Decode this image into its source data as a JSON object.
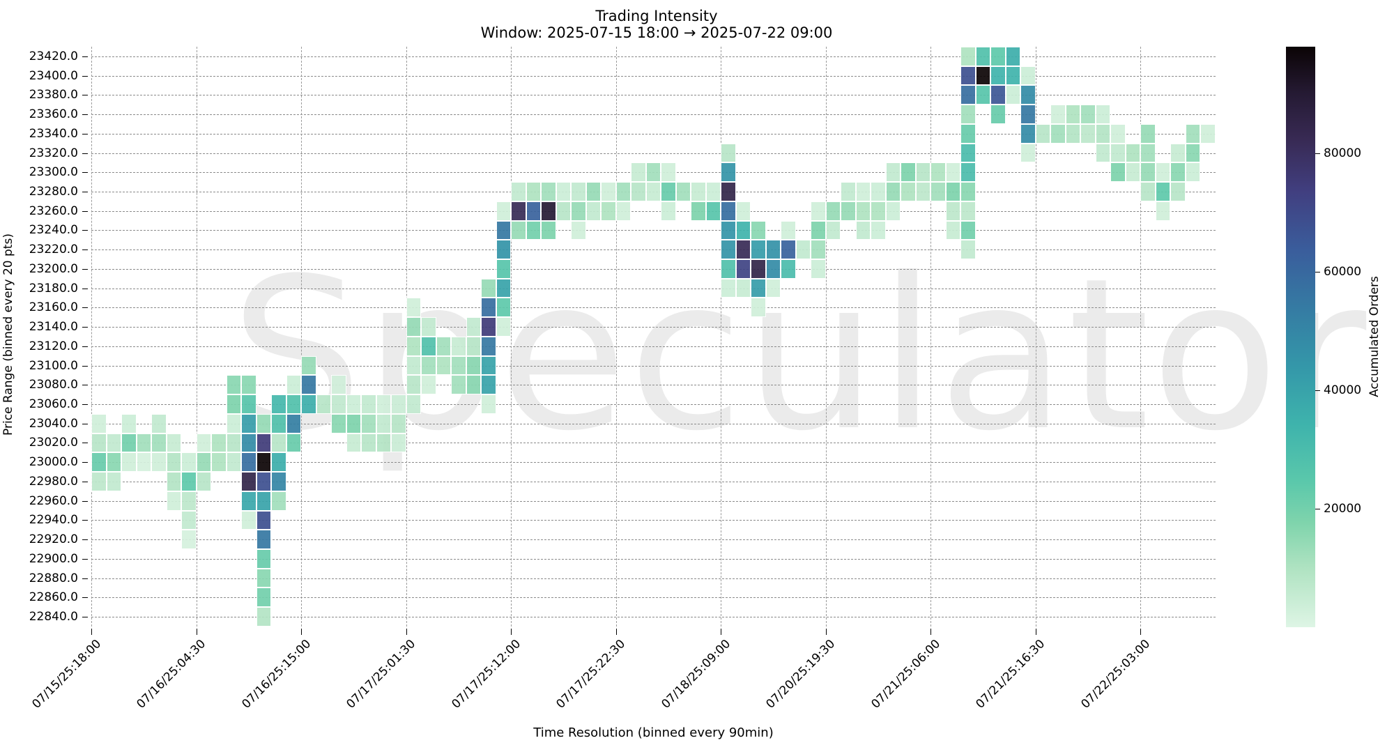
{
  "title": "Trading Intensity",
  "subtitle": "Window: 2025-07-15 18:00 → 2025-07-22 09:00",
  "watermark": "Speculator",
  "xlabel": "Time Resolution (binned every 90min)",
  "ylabel": "Price Range (binned every 20 pts)",
  "colorbar": {
    "label": "Accumulated Orders",
    "ticks": [
      "20000",
      "40000",
      "60000",
      "80000"
    ],
    "tick_values": [
      20000,
      40000,
      60000,
      80000
    ],
    "max": 98000
  },
  "chart_data": {
    "type": "heatmap",
    "title": "Trading Intensity",
    "subtitle": "Window: 2025-07-15 18:00 → 2025-07-22 09:00",
    "xlabel": "Time Resolution (binned every 90min)",
    "ylabel": "Price Range (binned every 20 pts)",
    "colorbar_label": "Accumulated Orders",
    "colormap": "mako_r",
    "value_range": [
      0,
      98000
    ],
    "grid": true,
    "n_columns": 75,
    "x_tick_every_columns": 7,
    "x_ticks": [
      "07/15/25:18:00",
      "07/16/25:04:30",
      "07/16/25:15:00",
      "07/17/25:01:30",
      "07/17/25:12:00",
      "07/17/25:22:30",
      "07/18/25:09:00",
      "07/20/25:19:30",
      "07/21/25:06:00",
      "07/21/25:16:30",
      "07/22/25:03:00"
    ],
    "y_ticks": [
      "23420.0",
      "23400.0",
      "23380.0",
      "23360.0",
      "23340.0",
      "23320.0",
      "23300.0",
      "23280.0",
      "23260.0",
      "23240.0",
      "23220.0",
      "23200.0",
      "23180.0",
      "23160.0",
      "23140.0",
      "23120.0",
      "23100.0",
      "23080.0",
      "23060.0",
      "23040.0",
      "23020.0",
      "23000.0",
      "22980.0",
      "22960.0",
      "22940.0",
      "22920.0",
      "22900.0",
      "22880.0",
      "22860.0",
      "22840.0"
    ],
    "cells_format": "[column_index, price_bin, accumulated_orders]",
    "cells": [
      [
        0,
        23040,
        3000
      ],
      [
        2,
        23040,
        4000
      ],
      [
        4,
        23040,
        6000
      ],
      [
        0,
        23020,
        8000
      ],
      [
        1,
        23020,
        6000
      ],
      [
        2,
        23020,
        20000
      ],
      [
        3,
        23020,
        12000
      ],
      [
        4,
        23020,
        12000
      ],
      [
        5,
        23020,
        5000
      ],
      [
        7,
        23020,
        3000
      ],
      [
        8,
        23020,
        10000
      ],
      [
        9,
        23020,
        8000
      ],
      [
        10,
        23020,
        48000
      ],
      [
        11,
        23020,
        75000
      ],
      [
        12,
        23020,
        8000
      ],
      [
        13,
        23020,
        22000
      ],
      [
        0,
        23000,
        22000
      ],
      [
        1,
        23000,
        16000
      ],
      [
        2,
        23000,
        3000
      ],
      [
        3,
        23000,
        2000
      ],
      [
        4,
        23000,
        3000
      ],
      [
        5,
        23000,
        9000
      ],
      [
        6,
        23000,
        4000
      ],
      [
        7,
        23000,
        14000
      ],
      [
        8,
        23000,
        10000
      ],
      [
        9,
        23000,
        6000
      ],
      [
        10,
        23000,
        58000
      ],
      [
        11,
        23000,
        98000
      ],
      [
        12,
        23000,
        36000
      ],
      [
        0,
        22980,
        7000
      ],
      [
        1,
        22980,
        6000
      ],
      [
        5,
        22980,
        9000
      ],
      [
        6,
        22980,
        24000
      ],
      [
        7,
        22980,
        8000
      ],
      [
        10,
        22980,
        85000
      ],
      [
        11,
        22980,
        68000
      ],
      [
        12,
        22980,
        50000
      ],
      [
        5,
        22960,
        3000
      ],
      [
        6,
        22960,
        7000
      ],
      [
        10,
        22960,
        38000
      ],
      [
        11,
        22960,
        40000
      ],
      [
        12,
        22960,
        12000
      ],
      [
        6,
        22940,
        6000
      ],
      [
        10,
        22940,
        3000
      ],
      [
        11,
        22940,
        68000
      ],
      [
        6,
        22920,
        2000
      ],
      [
        11,
        22920,
        55000
      ],
      [
        11,
        22900,
        22000
      ],
      [
        11,
        22880,
        16000
      ],
      [
        11,
        22860,
        20000
      ],
      [
        11,
        22840,
        9000
      ],
      [
        9,
        23080,
        16000
      ],
      [
        10,
        23080,
        16000
      ],
      [
        13,
        23080,
        4000
      ],
      [
        14,
        23080,
        55000
      ],
      [
        9,
        23060,
        18000
      ],
      [
        10,
        23060,
        26000
      ],
      [
        12,
        23060,
        32000
      ],
      [
        13,
        23060,
        28000
      ],
      [
        14,
        23060,
        36000
      ],
      [
        15,
        23060,
        8000
      ],
      [
        16,
        23060,
        6000
      ],
      [
        17,
        23060,
        4000
      ],
      [
        18,
        23060,
        6000
      ],
      [
        19,
        23060,
        3000
      ],
      [
        20,
        23060,
        4000
      ],
      [
        21,
        23060,
        6000
      ],
      [
        26,
        23060,
        3000
      ],
      [
        9,
        23040,
        4000
      ],
      [
        10,
        23040,
        42000
      ],
      [
        11,
        23040,
        14000
      ],
      [
        12,
        23040,
        28000
      ],
      [
        13,
        23040,
        52000
      ],
      [
        16,
        23040,
        16000
      ],
      [
        17,
        23040,
        18000
      ],
      [
        18,
        23040,
        12000
      ],
      [
        19,
        23040,
        6000
      ],
      [
        20,
        23040,
        8000
      ],
      [
        17,
        23020,
        5000
      ],
      [
        18,
        23020,
        8000
      ],
      [
        19,
        23020,
        9000
      ],
      [
        20,
        23020,
        4000
      ],
      [
        14,
        23100,
        14000
      ],
      [
        16,
        23080,
        3000
      ],
      [
        21,
        23080,
        8000
      ],
      [
        22,
        23080,
        3000
      ],
      [
        24,
        23080,
        12000
      ],
      [
        25,
        23080,
        16000
      ],
      [
        26,
        23080,
        40000
      ],
      [
        21,
        23100,
        6000
      ],
      [
        22,
        23100,
        12000
      ],
      [
        23,
        23100,
        10000
      ],
      [
        24,
        23100,
        12000
      ],
      [
        25,
        23100,
        16000
      ],
      [
        26,
        23100,
        40000
      ],
      [
        21,
        23120,
        10000
      ],
      [
        22,
        23120,
        28000
      ],
      [
        23,
        23120,
        12000
      ],
      [
        24,
        23120,
        5000
      ],
      [
        25,
        23120,
        8000
      ],
      [
        26,
        23120,
        55000
      ],
      [
        21,
        23140,
        14000
      ],
      [
        22,
        23140,
        6000
      ],
      [
        25,
        23140,
        6000
      ],
      [
        26,
        23140,
        75000
      ],
      [
        27,
        23140,
        3000
      ],
      [
        21,
        23160,
        3000
      ],
      [
        26,
        23160,
        58000
      ],
      [
        27,
        23160,
        24000
      ],
      [
        26,
        23180,
        14000
      ],
      [
        27,
        23180,
        40000
      ],
      [
        27,
        23200,
        26000
      ],
      [
        27,
        23220,
        45000
      ],
      [
        27,
        23240,
        55000
      ],
      [
        27,
        23260,
        3000
      ],
      [
        28,
        23240,
        14000
      ],
      [
        29,
        23240,
        20000
      ],
      [
        30,
        23240,
        18000
      ],
      [
        32,
        23240,
        3000
      ],
      [
        28,
        23260,
        82000
      ],
      [
        29,
        23260,
        62000
      ],
      [
        30,
        23260,
        90000
      ],
      [
        31,
        23260,
        8000
      ],
      [
        32,
        23260,
        14000
      ],
      [
        33,
        23260,
        6000
      ],
      [
        34,
        23260,
        10000
      ],
      [
        35,
        23260,
        3000
      ],
      [
        38,
        23260,
        4000
      ],
      [
        40,
        23260,
        18000
      ],
      [
        41,
        23260,
        26000
      ],
      [
        42,
        23260,
        58000
      ],
      [
        28,
        23280,
        6000
      ],
      [
        29,
        23280,
        10000
      ],
      [
        30,
        23280,
        12000
      ],
      [
        31,
        23280,
        4000
      ],
      [
        32,
        23280,
        6000
      ],
      [
        33,
        23280,
        14000
      ],
      [
        34,
        23280,
        3000
      ],
      [
        35,
        23280,
        12000
      ],
      [
        36,
        23280,
        8000
      ],
      [
        37,
        23280,
        5000
      ],
      [
        38,
        23280,
        22000
      ],
      [
        39,
        23280,
        12000
      ],
      [
        40,
        23280,
        5000
      ],
      [
        41,
        23280,
        4000
      ],
      [
        42,
        23280,
        85000
      ],
      [
        36,
        23300,
        5000
      ],
      [
        37,
        23300,
        12000
      ],
      [
        38,
        23300,
        3000
      ],
      [
        42,
        23300,
        45000
      ],
      [
        42,
        23320,
        8000
      ],
      [
        43,
        23260,
        3000
      ],
      [
        48,
        23260,
        3000
      ],
      [
        49,
        23260,
        14000
      ],
      [
        50,
        23260,
        14000
      ],
      [
        51,
        23260,
        10000
      ],
      [
        52,
        23260,
        10000
      ],
      [
        53,
        23260,
        4000
      ],
      [
        57,
        23260,
        7000
      ],
      [
        58,
        23260,
        7000
      ],
      [
        42,
        23240,
        45000
      ],
      [
        43,
        23240,
        34000
      ],
      [
        44,
        23240,
        16000
      ],
      [
        46,
        23240,
        3000
      ],
      [
        48,
        23240,
        18000
      ],
      [
        49,
        23240,
        6000
      ],
      [
        51,
        23240,
        6000
      ],
      [
        52,
        23240,
        4000
      ],
      [
        57,
        23240,
        5000
      ],
      [
        58,
        23240,
        20000
      ],
      [
        42,
        23220,
        45000
      ],
      [
        43,
        23220,
        82000
      ],
      [
        44,
        23220,
        42000
      ],
      [
        45,
        23220,
        46000
      ],
      [
        46,
        23220,
        62000
      ],
      [
        47,
        23220,
        6000
      ],
      [
        48,
        23220,
        12000
      ],
      [
        58,
        23220,
        6000
      ],
      [
        42,
        23200,
        28000
      ],
      [
        43,
        23200,
        72000
      ],
      [
        44,
        23200,
        85000
      ],
      [
        45,
        23200,
        48000
      ],
      [
        46,
        23200,
        30000
      ],
      [
        48,
        23200,
        4000
      ],
      [
        42,
        23180,
        4000
      ],
      [
        43,
        23180,
        5000
      ],
      [
        44,
        23180,
        42000
      ],
      [
        45,
        23180,
        3000
      ],
      [
        44,
        23160,
        3000
      ],
      [
        50,
        23280,
        6000
      ],
      [
        51,
        23280,
        3000
      ],
      [
        52,
        23280,
        4000
      ],
      [
        53,
        23280,
        14000
      ],
      [
        54,
        23280,
        10000
      ],
      [
        55,
        23280,
        7000
      ],
      [
        56,
        23280,
        12000
      ],
      [
        57,
        23280,
        18000
      ],
      [
        58,
        23280,
        16000
      ],
      [
        53,
        23300,
        6000
      ],
      [
        54,
        23300,
        18000
      ],
      [
        55,
        23300,
        8000
      ],
      [
        56,
        23300,
        10000
      ],
      [
        57,
        23300,
        3000
      ],
      [
        58,
        23300,
        30000
      ],
      [
        58,
        23320,
        30000
      ],
      [
        62,
        23320,
        3000
      ],
      [
        58,
        23340,
        22000
      ],
      [
        62,
        23340,
        48000
      ],
      [
        58,
        23360,
        12000
      ],
      [
        60,
        23360,
        22000
      ],
      [
        62,
        23360,
        55000
      ],
      [
        58,
        23380,
        58000
      ],
      [
        59,
        23380,
        26000
      ],
      [
        60,
        23380,
        66000
      ],
      [
        61,
        23380,
        4000
      ],
      [
        62,
        23380,
        48000
      ],
      [
        58,
        23400,
        68000
      ],
      [
        59,
        23400,
        98000
      ],
      [
        60,
        23400,
        34000
      ],
      [
        61,
        23400,
        34000
      ],
      [
        62,
        23400,
        4000
      ],
      [
        58,
        23420,
        10000
      ],
      [
        59,
        23420,
        28000
      ],
      [
        60,
        23420,
        24000
      ],
      [
        61,
        23420,
        36000
      ],
      [
        64,
        23360,
        3000
      ],
      [
        65,
        23360,
        10000
      ],
      [
        66,
        23360,
        12000
      ],
      [
        67,
        23360,
        4000
      ],
      [
        63,
        23340,
        8000
      ],
      [
        64,
        23340,
        12000
      ],
      [
        65,
        23340,
        9000
      ],
      [
        66,
        23340,
        7000
      ],
      [
        67,
        23340,
        9000
      ],
      [
        68,
        23340,
        3000
      ],
      [
        70,
        23340,
        14000
      ],
      [
        73,
        23340,
        12000
      ],
      [
        74,
        23340,
        3000
      ],
      [
        67,
        23320,
        6000
      ],
      [
        68,
        23320,
        6000
      ],
      [
        69,
        23320,
        10000
      ],
      [
        70,
        23320,
        12000
      ],
      [
        72,
        23320,
        5000
      ],
      [
        73,
        23320,
        16000
      ],
      [
        68,
        23300,
        18000
      ],
      [
        69,
        23300,
        5000
      ],
      [
        70,
        23300,
        14000
      ],
      [
        71,
        23300,
        3000
      ],
      [
        72,
        23300,
        16000
      ],
      [
        73,
        23300,
        4000
      ],
      [
        70,
        23280,
        8000
      ],
      [
        71,
        23280,
        24000
      ],
      [
        72,
        23280,
        8000
      ],
      [
        71,
        23260,
        3000
      ]
    ]
  }
}
